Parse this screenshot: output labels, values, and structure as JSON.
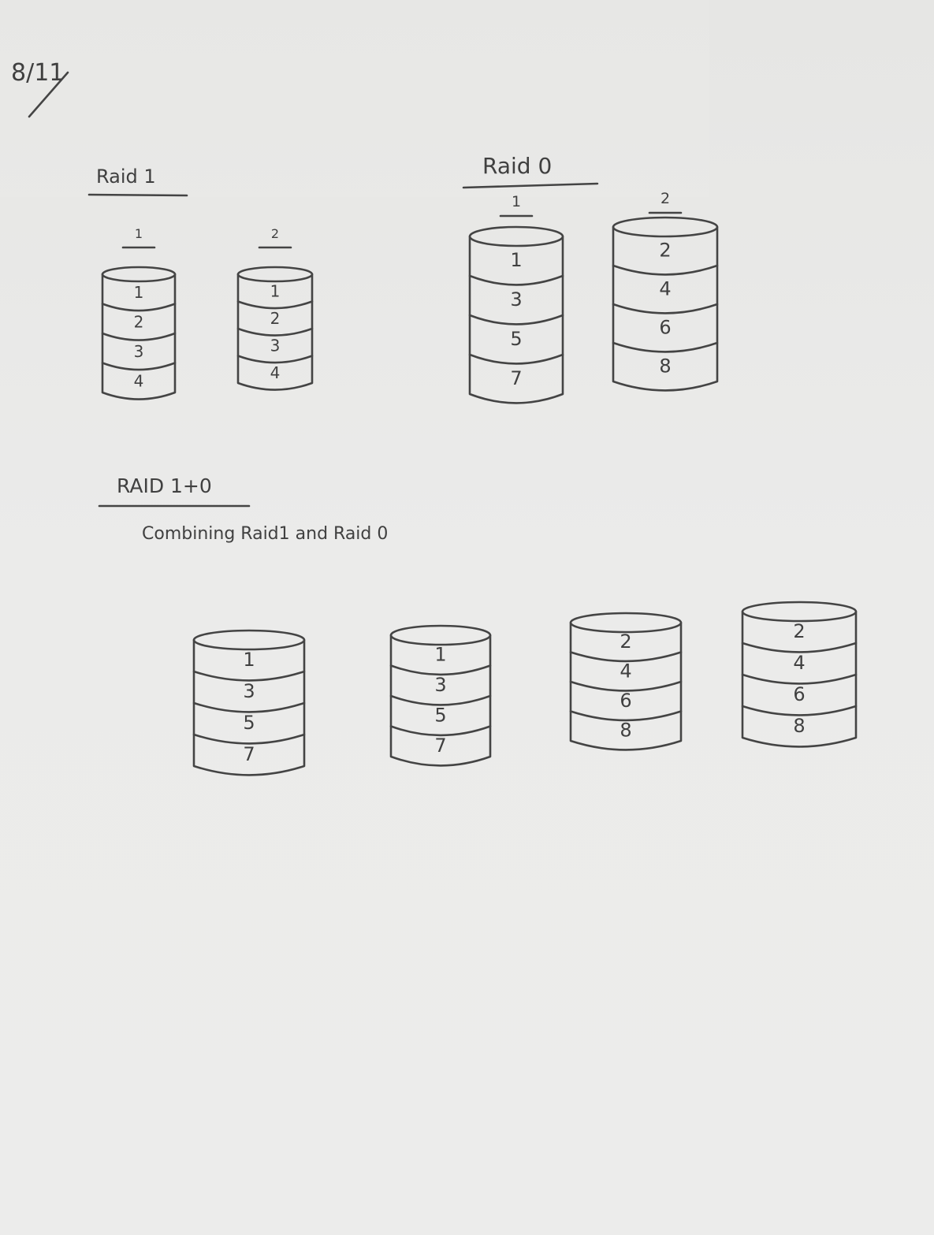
{
  "page_number": "8/11",
  "raid1": {
    "heading": "Raid 1",
    "disks": [
      {
        "label": "1",
        "blocks": [
          "1",
          "2",
          "3",
          "4"
        ]
      },
      {
        "label": "2",
        "blocks": [
          "1",
          "2",
          "3",
          "4"
        ]
      }
    ]
  },
  "raid0": {
    "heading": "Raid 0",
    "disks": [
      {
        "label": "1",
        "blocks": [
          "1",
          "3",
          "5",
          "7"
        ]
      },
      {
        "label": "2",
        "blocks": [
          "2",
          "4",
          "6",
          "8"
        ]
      }
    ]
  },
  "raid10": {
    "heading": "RAID 1+0",
    "subtitle": "Combining Raid1 and Raid 0",
    "disks": [
      {
        "blocks": [
          "1",
          "3",
          "5",
          "7"
        ]
      },
      {
        "blocks": [
          "1",
          "3",
          "5",
          "7"
        ]
      },
      {
        "blocks": [
          "2",
          "4",
          "6",
          "8"
        ]
      },
      {
        "blocks": [
          "2",
          "4",
          "6",
          "8"
        ]
      }
    ]
  }
}
